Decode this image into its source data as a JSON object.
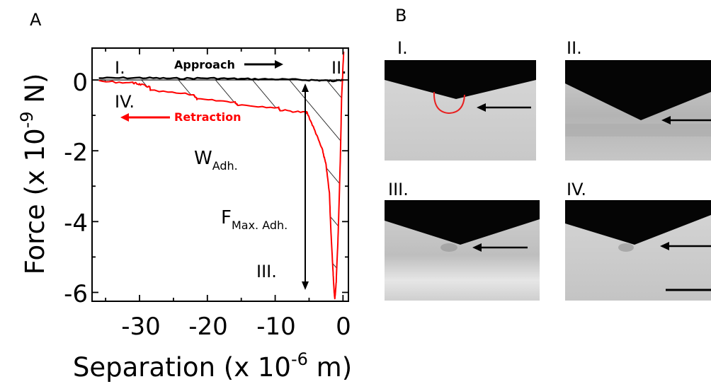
{
  "figure": {
    "panel_a_label": "A",
    "panel_b_label": "B"
  },
  "chart_data": {
    "type": "line",
    "xlabel_text": "Separation (x 10",
    "xlabel_exp": "-6",
    "xlabel_unit": " m)",
    "ylabel_text": "Force (x 10",
    "ylabel_exp": "-9",
    "ylabel_unit": " N)",
    "xlim": [
      -37,
      0.8
    ],
    "ylim": [
      -6.25,
      0.9
    ],
    "xticks": [
      {
        "value": -30,
        "label": "-30"
      },
      {
        "value": -20,
        "label": "-20"
      },
      {
        "value": -10,
        "label": "-10"
      },
      {
        "value": 0,
        "label": "0"
      }
    ],
    "yticks": [
      {
        "value": 0,
        "label": "0"
      },
      {
        "value": -2,
        "label": "-2"
      },
      {
        "value": -4,
        "label": "-4"
      },
      {
        "value": -6,
        "label": "-6"
      }
    ],
    "series": [
      {
        "color": "#000000",
        "x": [
          -36,
          -30,
          -25,
          -20,
          -15,
          -10,
          -5,
          -2,
          -1,
          0
        ],
        "y": [
          0.05,
          0.06,
          0.04,
          0.05,
          0.03,
          0.02,
          0.0,
          -0.02,
          -0.02,
          0.0
        ]
      },
      {
        "color": "#ff0000",
        "x": [
          -36,
          -31,
          -30,
          -28.5,
          -28.4,
          -22,
          -21.5,
          -16,
          -15.5,
          -9.5,
          -9.3,
          -5.5,
          -5.3,
          -4,
          -3,
          -2.5,
          -2,
          -1.8,
          -1.5,
          -1.3,
          -1.2,
          -1.0,
          -0.7,
          -0.4,
          -0.2,
          0.1
        ],
        "y": [
          -0.04,
          -0.08,
          -0.12,
          -0.2,
          -0.3,
          -0.42,
          -0.55,
          -0.62,
          -0.7,
          -0.78,
          -0.85,
          -0.92,
          -0.92,
          -1.5,
          -2.0,
          -2.4,
          -3.2,
          -4.2,
          -5.3,
          -6.0,
          -6.2,
          -5.7,
          -4.3,
          -2.3,
          -0.5,
          0.8
        ]
      }
    ],
    "annotations": {
      "approach": "Approach",
      "retraction": "Retraction",
      "stage_i": "I.",
      "stage_ii": "II.",
      "stage_iii": "III.",
      "stage_iv": "IV.",
      "w_main": "W",
      "w_sub": "Adh.",
      "f_main": "F",
      "f_sub": "Max. Adh."
    },
    "colors": {
      "approach": "#000000",
      "retraction": "#ff0000"
    }
  },
  "panel_b": {
    "images": [
      {
        "label": "I."
      },
      {
        "label": "II."
      },
      {
        "label": "III."
      },
      {
        "label": "IV."
      }
    ]
  }
}
